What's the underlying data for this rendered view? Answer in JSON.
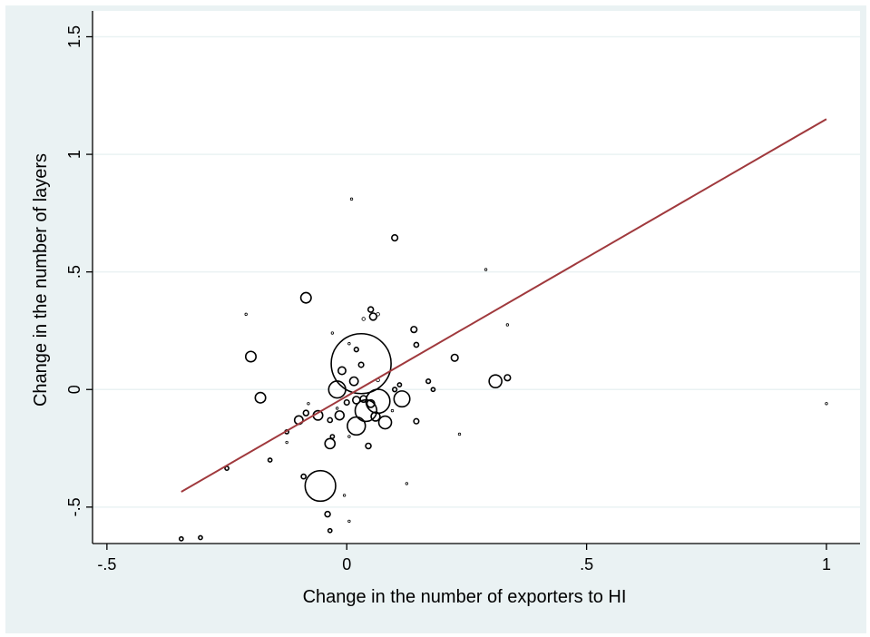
{
  "chart_data": {
    "type": "scatter",
    "xlabel": "Change in the number of exporters to HI",
    "ylabel": "Change in the number of layers",
    "xlim": [
      -0.53,
      1.07
    ],
    "ylim": [
      -0.655,
      1.61
    ],
    "xticks": [
      -0.5,
      0,
      0.5,
      1
    ],
    "xtick_labels": [
      "-.5",
      "0",
      ".5",
      "1"
    ],
    "yticks": [
      -0.5,
      0,
      0.5,
      1,
      1.5
    ],
    "ytick_labels": [
      "-.5",
      "0",
      ".5",
      "1",
      "1.5"
    ],
    "grid": "horizontal",
    "legend": "none",
    "marker": "hollow-circle-weighted",
    "colors": {
      "background": "#eaf2f3",
      "plot_area": "#ffffff",
      "gridline": "#eaf2f3",
      "marker": "#000000",
      "fit_line": "#a0393d"
    },
    "fit_line": {
      "x": [
        -0.345,
        1.0
      ],
      "y": [
        -0.435,
        1.15
      ]
    },
    "points": [
      {
        "x": 0.03,
        "y": 0.11,
        "w": 100
      },
      {
        "x": -0.055,
        "y": -0.41,
        "w": 26
      },
      {
        "x": 0.065,
        "y": -0.05,
        "w": 16
      },
      {
        "x": 0.04,
        "y": -0.09,
        "w": 13
      },
      {
        "x": 0.02,
        "y": -0.155,
        "w": 9
      },
      {
        "x": -0.02,
        "y": 0.0,
        "w": 8
      },
      {
        "x": 0.115,
        "y": -0.04,
        "w": 7
      },
      {
        "x": 0.08,
        "y": -0.14,
        "w": 4.5
      },
      {
        "x": 0.31,
        "y": 0.035,
        "w": 4.5
      },
      {
        "x": -0.18,
        "y": -0.035,
        "w": 3
      },
      {
        "x": -0.2,
        "y": 0.14,
        "w": 3
      },
      {
        "x": -0.085,
        "y": 0.39,
        "w": 3
      },
      {
        "x": -0.035,
        "y": -0.23,
        "w": 2.8
      },
      {
        "x": -0.06,
        "y": -0.11,
        "w": 2.5
      },
      {
        "x": -0.015,
        "y": -0.11,
        "w": 2.2
      },
      {
        "x": 0.06,
        "y": -0.115,
        "w": 2.2
      },
      {
        "x": -0.1,
        "y": -0.13,
        "w": 2
      },
      {
        "x": 0.015,
        "y": 0.035,
        "w": 2
      },
      {
        "x": -0.01,
        "y": 0.08,
        "w": 1.6
      },
      {
        "x": 0.05,
        "y": -0.06,
        "w": 1.6
      },
      {
        "x": 0.02,
        "y": -0.045,
        "w": 1.5
      },
      {
        "x": 0.055,
        "y": 0.31,
        "w": 1.4
      },
      {
        "x": 0.225,
        "y": 0.135,
        "w": 1.3
      },
      {
        "x": 0.035,
        "y": -0.04,
        "w": 1.2
      },
      {
        "x": 0.1,
        "y": 0.645,
        "w": 1
      },
      {
        "x": 0.14,
        "y": 0.255,
        "w": 1
      },
      {
        "x": 0.335,
        "y": 0.05,
        "w": 1
      },
      {
        "x": 0.05,
        "y": 0.34,
        "w": 0.8
      },
      {
        "x": -0.085,
        "y": -0.1,
        "w": 0.8
      },
      {
        "x": 0.045,
        "y": -0.24,
        "w": 0.8
      },
      {
        "x": -0.04,
        "y": -0.53,
        "w": 0.8
      },
      {
        "x": 0.145,
        "y": -0.135,
        "w": 0.7
      },
      {
        "x": 0.03,
        "y": 0.105,
        "w": 0.7
      },
      {
        "x": 0.0,
        "y": -0.055,
        "w": 0.7
      },
      {
        "x": -0.035,
        "y": -0.13,
        "w": 0.6
      },
      {
        "x": 0.145,
        "y": 0.19,
        "w": 0.6
      },
      {
        "x": -0.09,
        "y": -0.37,
        "w": 0.6
      },
      {
        "x": 0.02,
        "y": 0.17,
        "w": 0.5
      },
      {
        "x": 0.1,
        "y": 0.0,
        "w": 0.5
      },
      {
        "x": 0.17,
        "y": 0.035,
        "w": 0.5
      },
      {
        "x": -0.035,
        "y": -0.6,
        "w": 0.4
      },
      {
        "x": -0.345,
        "y": -0.635,
        "w": 0.4
      },
      {
        "x": -0.305,
        "y": -0.63,
        "w": 0.4
      },
      {
        "x": -0.25,
        "y": -0.335,
        "w": 0.4
      },
      {
        "x": -0.16,
        "y": -0.3,
        "w": 0.4
      },
      {
        "x": -0.125,
        "y": -0.18,
        "w": 0.4
      },
      {
        "x": 0.18,
        "y": 0.0,
        "w": 0.4
      },
      {
        "x": 0.11,
        "y": 0.02,
        "w": 0.4
      },
      {
        "x": -0.03,
        "y": -0.2,
        "w": 0.4
      },
      {
        "x": 0.065,
        "y": 0.32,
        "w": 0.3
      },
      {
        "x": 0.035,
        "y": 0.3,
        "w": 0.3
      },
      {
        "x": 0.065,
        "y": 0.04,
        "w": 0.3
      },
      {
        "x": 0.01,
        "y": 0.81,
        "w": 0.15
      },
      {
        "x": 0.29,
        "y": 0.51,
        "w": 0.15
      },
      {
        "x": -0.21,
        "y": 0.32,
        "w": 0.15
      },
      {
        "x": 0.335,
        "y": 0.275,
        "w": 0.15
      },
      {
        "x": 0.235,
        "y": -0.19,
        "w": 0.15
      },
      {
        "x": 0.125,
        "y": -0.4,
        "w": 0.15
      },
      {
        "x": -0.005,
        "y": -0.45,
        "w": 0.15
      },
      {
        "x": 0.005,
        "y": -0.56,
        "w": 0.15
      },
      {
        "x": -0.125,
        "y": -0.225,
        "w": 0.15
      },
      {
        "x": -0.03,
        "y": 0.24,
        "w": 0.15
      },
      {
        "x": 1.0,
        "y": -0.06,
        "w": 0.15
      },
      {
        "x": 0.095,
        "y": -0.09,
        "w": 0.15
      },
      {
        "x": -0.08,
        "y": -0.06,
        "w": 0.15
      },
      {
        "x": 0.005,
        "y": -0.2,
        "w": 0.15
      },
      {
        "x": 0.005,
        "y": 0.195,
        "w": 0.15
      },
      {
        "x": -0.02,
        "y": -0.08,
        "w": 0.15
      }
    ]
  }
}
